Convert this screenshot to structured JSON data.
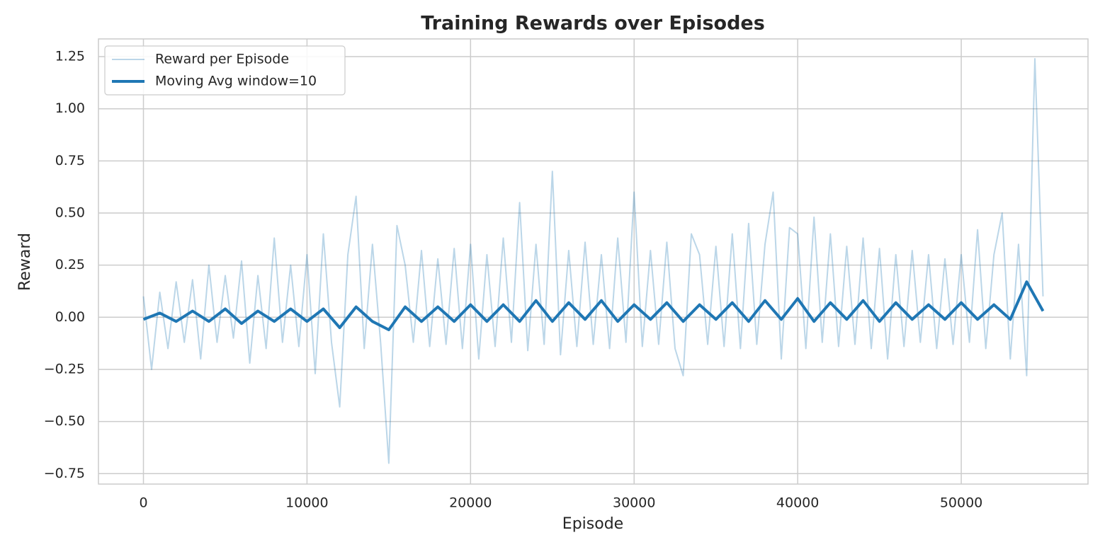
{
  "chart_data": {
    "type": "line",
    "title": "Training Rewards over Episodes",
    "xlabel": "Episode",
    "ylabel": "Reward",
    "xlim": [
      -2750,
      57750
    ],
    "xticks": [
      0,
      10000,
      20000,
      30000,
      40000,
      50000
    ],
    "ylim": [
      -0.8,
      1.335
    ],
    "yticks": [
      {
        "value": -0.75,
        "label": "−0.75"
      },
      {
        "value": -0.5,
        "label": "−0.50"
      },
      {
        "value": -0.25,
        "label": "−0.25"
      },
      {
        "value": 0,
        "label": "0.00"
      },
      0.25,
      {
        "value": 0.5,
        "label": "0.50"
      },
      0.75,
      {
        "value": 1,
        "label": "1.00"
      },
      1.25
    ],
    "grid": true,
    "legend": "upper left",
    "series": [
      {
        "name": "Reward per Episode",
        "color": "#1f77b4",
        "alpha": 0.3,
        "x": [
          0,
          500,
          1000,
          1500,
          2000,
          2500,
          3000,
          3500,
          4000,
          4500,
          5000,
          5500,
          6000,
          6500,
          7000,
          7500,
          8000,
          8500,
          9000,
          9500,
          10000,
          10500,
          11000,
          11500,
          12000,
          12500,
          13000,
          13500,
          14000,
          14500,
          15000,
          15500,
          16000,
          16500,
          17000,
          17500,
          18000,
          18500,
          19000,
          19500,
          20000,
          20500,
          21000,
          21500,
          22000,
          22500,
          23000,
          23500,
          24000,
          24500,
          25000,
          25500,
          26000,
          26500,
          27000,
          27500,
          28000,
          28500,
          29000,
          29500,
          30000,
          30500,
          31000,
          31500,
          32000,
          32500,
          33000,
          33500,
          34000,
          34500,
          35000,
          35500,
          36000,
          36500,
          37000,
          37500,
          38000,
          38500,
          39000,
          39500,
          40000,
          40500,
          41000,
          41500,
          42000,
          42500,
          43000,
          43500,
          44000,
          44500,
          45000,
          45500,
          46000,
          46500,
          47000,
          47500,
          48000,
          48500,
          49000,
          49500,
          50000,
          50500,
          51000,
          51500,
          52000,
          52500,
          53000,
          53500,
          54000,
          54500,
          55000
        ],
        "values": [
          0.1,
          -0.25,
          0.12,
          -0.15,
          0.17,
          -0.12,
          0.18,
          -0.2,
          0.25,
          -0.12,
          0.2,
          -0.1,
          0.27,
          -0.22,
          0.2,
          -0.15,
          0.38,
          -0.12,
          0.25,
          -0.14,
          0.3,
          -0.27,
          0.4,
          -0.12,
          -0.43,
          0.3,
          0.58,
          -0.15,
          0.35,
          -0.12,
          -0.7,
          0.44,
          0.25,
          -0.12,
          0.32,
          -0.14,
          0.28,
          -0.13,
          0.33,
          -0.15,
          0.35,
          -0.2,
          0.3,
          -0.14,
          0.38,
          -0.12,
          0.55,
          -0.16,
          0.35,
          -0.13,
          0.7,
          -0.18,
          0.32,
          -0.14,
          0.36,
          -0.13,
          0.3,
          -0.15,
          0.38,
          -0.12,
          0.6,
          -0.14,
          0.32,
          -0.13,
          0.36,
          -0.15,
          -0.28,
          0.4,
          0.3,
          -0.13,
          0.34,
          -0.14,
          0.4,
          -0.15,
          0.45,
          -0.13,
          0.35,
          0.6,
          -0.2,
          0.43,
          0.4,
          -0.15,
          0.48,
          -0.12,
          0.4,
          -0.14,
          0.34,
          -0.13,
          0.38,
          -0.15,
          0.33,
          -0.2,
          0.3,
          -0.14,
          0.32,
          -0.12,
          0.3,
          -0.15,
          0.28,
          -0.13,
          0.3,
          -0.12,
          0.42,
          -0.15,
          0.3,
          0.5,
          -0.2,
          0.35,
          -0.28,
          1.24,
          0.1
        ]
      },
      {
        "name": "Moving Avg window=10",
        "color": "#1f77b4",
        "alpha": 1,
        "x": [
          0,
          1000,
          2000,
          3000,
          4000,
          5000,
          6000,
          7000,
          8000,
          9000,
          10000,
          11000,
          12000,
          13000,
          14000,
          15000,
          16000,
          17000,
          18000,
          19000,
          20000,
          21000,
          22000,
          23000,
          24000,
          25000,
          26000,
          27000,
          28000,
          29000,
          30000,
          31000,
          32000,
          33000,
          34000,
          35000,
          36000,
          37000,
          38000,
          39000,
          40000,
          41000,
          42000,
          43000,
          44000,
          45000,
          46000,
          47000,
          48000,
          49000,
          50000,
          51000,
          52000,
          53000,
          54000,
          55000
        ],
        "values": [
          -0.01,
          0.02,
          -0.02,
          0.03,
          -0.02,
          0.04,
          -0.03,
          0.03,
          -0.02,
          0.04,
          -0.02,
          0.04,
          -0.05,
          0.05,
          -0.02,
          -0.06,
          0.05,
          -0.02,
          0.05,
          -0.02,
          0.06,
          -0.02,
          0.06,
          -0.02,
          0.08,
          -0.02,
          0.07,
          -0.01,
          0.08,
          -0.02,
          0.06,
          -0.01,
          0.07,
          -0.02,
          0.06,
          -0.01,
          0.07,
          -0.02,
          0.08,
          -0.01,
          0.09,
          -0.02,
          0.07,
          -0.01,
          0.08,
          -0.02,
          0.07,
          -0.01,
          0.06,
          -0.01,
          0.07,
          -0.01,
          0.06,
          -0.01,
          0.17,
          0.03
        ]
      }
    ]
  }
}
